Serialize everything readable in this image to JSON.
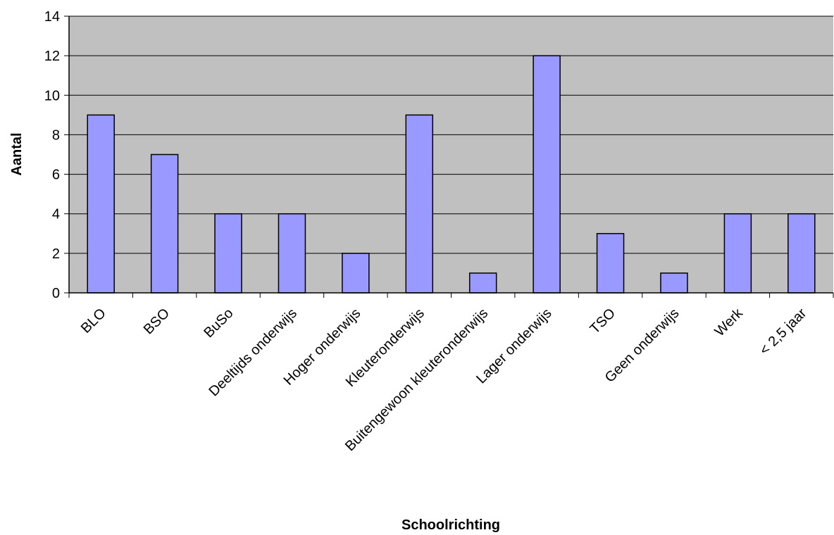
{
  "chart_data": {
    "type": "bar",
    "title": "",
    "xlabel": "Schoolrichting",
    "ylabel": "Aantal",
    "categories": [
      "BLO",
      "BSO",
      "BuSo",
      "Deeltijds onderwijs",
      "Hoger onderwijs",
      "Kleuteronderwijs",
      "Buitengewoon kleuteronderwijs",
      "Lager onderwijs",
      "TSO",
      "Geen onderwijs",
      "Werk",
      "< 2,5 jaar"
    ],
    "values": [
      9,
      7,
      4,
      4,
      2,
      9,
      1,
      12,
      3,
      1,
      4,
      4
    ],
    "ylim": [
      0,
      14
    ],
    "yticks": [
      0,
      2,
      4,
      6,
      8,
      10,
      12,
      14
    ],
    "grid": true,
    "legend": "none",
    "colors": {
      "bar_fill": "#9999ff",
      "bar_stroke": "#000000",
      "plot_background": "#c0c0c0",
      "gridline": "#000000"
    }
  }
}
